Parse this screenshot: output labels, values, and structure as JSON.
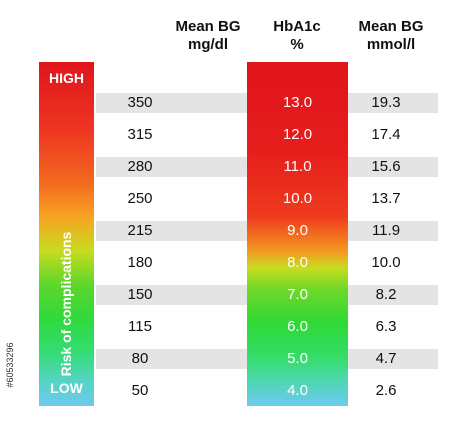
{
  "chart_data": {
    "type": "table",
    "columns": [
      {
        "line1": "Mean BG",
        "line2": "mg/dl"
      },
      {
        "line1": "HbA1c",
        "line2": "%"
      },
      {
        "line1": "Mean BG",
        "line2": "mmol/l"
      }
    ],
    "rows": [
      {
        "mgdl": "350",
        "hba1c": "13.0",
        "mmol": "19.3"
      },
      {
        "mgdl": "315",
        "hba1c": "12.0",
        "mmol": "17.4"
      },
      {
        "mgdl": "280",
        "hba1c": "11.0",
        "mmol": "15.6"
      },
      {
        "mgdl": "250",
        "hba1c": "10.0",
        "mmol": "13.7"
      },
      {
        "mgdl": "215",
        "hba1c": "9.0",
        "mmol": "11.9"
      },
      {
        "mgdl": "180",
        "hba1c": "8.0",
        "mmol": "10.0"
      },
      {
        "mgdl": "150",
        "hba1c": "7.0",
        "mmol": "8.2"
      },
      {
        "mgdl": "115",
        "hba1c": "6.0",
        "mmol": "6.3"
      },
      {
        "mgdl": "80",
        "hba1c": "5.0",
        "mmol": "4.7"
      },
      {
        "mgdl": "50",
        "hba1c": "4.0",
        "mmol": "2.6"
      }
    ],
    "risk_bar": {
      "high": "HIGH",
      "low": "LOW",
      "label": "Risk of complications"
    }
  },
  "credit": "#60533296",
  "colors": {
    "high": "#e0141b",
    "mid": "#f39a22",
    "good": "#2fd936",
    "low": "#6ec9ef",
    "stripe": "#e4e4e4"
  }
}
